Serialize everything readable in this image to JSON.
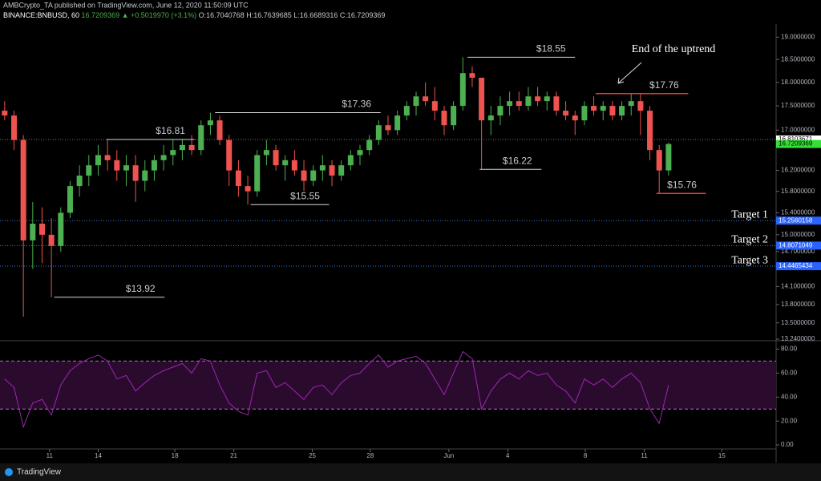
{
  "header": {
    "author": "AMBCrypto_TA published on TradingView.com, June 12, 2020 11:50:09 UTC",
    "symbol": "BINANCE:BNBUSD, 60",
    "last": "16.7209369",
    "change": "▲ +0.5019970 (+3.1%)",
    "open": "O:16.7040768",
    "high": "H:16.7639685",
    "low": "L:16.6689316",
    "close": "C:16.7209369",
    "brand": "TradingView"
  },
  "chart_data": [
    {
      "type": "candlestick",
      "log_scale": true,
      "up_color": "#4caf50",
      "down_color": "#ef5350",
      "ylim": [
        13.24,
        19.3
      ],
      "yticks": [
        {
          "value": 19,
          "label": "19.0000000"
        },
        {
          "value": 18.5,
          "label": "18.5000000"
        },
        {
          "value": 18,
          "label": "18.0000000"
        },
        {
          "value": 17.5,
          "label": "17.5000000"
        },
        {
          "value": 17,
          "label": "17.0000000"
        },
        {
          "value": 16.2,
          "label": "16.2000000"
        },
        {
          "value": 15.8,
          "label": "15.8000000"
        },
        {
          "value": 15.4,
          "label": "15.4000000"
        },
        {
          "value": 15,
          "label": "15.0000000"
        },
        {
          "value": 14.7,
          "label": "14.7000000"
        },
        {
          "value": 14.1,
          "label": "14.1000000"
        },
        {
          "value": 13.8,
          "label": "13.8000000"
        },
        {
          "value": 13.5,
          "label": "13.5000000"
        },
        {
          "value": 13.24,
          "label": "13.2400000"
        }
      ],
      "xlim": [
        0,
        83
      ],
      "xticks": [
        {
          "value": 5.3,
          "label": "11"
        },
        {
          "value": 10.5,
          "label": "14"
        },
        {
          "value": 18.7,
          "label": "18"
        },
        {
          "value": 25,
          "label": "21"
        },
        {
          "value": 33.4,
          "label": "25"
        },
        {
          "value": 39.6,
          "label": "28"
        },
        {
          "value": 48,
          "label": "Jun"
        },
        {
          "value": 54.3,
          "label": "4"
        },
        {
          "value": 62.6,
          "label": "8"
        },
        {
          "value": 68.9,
          "label": "11"
        },
        {
          "value": 77.2,
          "label": "15"
        }
      ],
      "open": [
        17.4,
        17.3,
        16.8,
        14.9,
        15.2,
        15.0,
        14.8,
        15.4,
        15.9,
        16.1,
        16.3,
        16.5,
        16.4,
        16.2,
        16.3,
        16.0,
        16.2,
        16.4,
        16.5,
        16.6,
        16.7,
        16.6,
        17.1,
        17.2,
        16.8,
        16.2,
        15.9,
        15.8,
        16.5,
        16.6,
        16.3,
        16.4,
        16.2,
        16.0,
        16.2,
        16.3,
        16.1,
        16.3,
        16.5,
        16.6,
        16.8,
        17.1,
        17.0,
        17.3,
        17.5,
        17.7,
        17.6,
        17.4,
        17.1,
        17.5,
        18.2,
        18.1,
        17.2,
        17.3,
        17.5,
        17.6,
        17.5,
        17.7,
        17.6,
        17.7,
        17.4,
        17.3,
        17.2,
        17.5,
        17.4,
        17.5,
        17.3,
        17.5,
        17.6,
        17.4,
        16.6,
        16.2
      ],
      "high": [
        17.6,
        17.4,
        16.9,
        15.6,
        15.5,
        15.3,
        15.5,
        16.0,
        16.3,
        16.5,
        16.7,
        16.81,
        16.6,
        16.5,
        16.5,
        16.4,
        16.5,
        16.7,
        16.8,
        16.81,
        16.9,
        17.2,
        17.36,
        17.3,
        16.9,
        16.4,
        16.1,
        16.6,
        16.8,
        16.7,
        16.5,
        16.6,
        16.4,
        16.3,
        16.5,
        16.4,
        16.4,
        16.6,
        16.7,
        16.9,
        17.2,
        17.3,
        17.4,
        17.6,
        17.8,
        18.0,
        17.9,
        17.5,
        17.6,
        18.55,
        18.35,
        18.1,
        17.5,
        17.7,
        17.8,
        17.8,
        17.9,
        17.9,
        17.8,
        17.8,
        17.6,
        17.4,
        17.6,
        17.7,
        17.6,
        17.6,
        17.6,
        17.76,
        17.76,
        17.5,
        16.7,
        16.75
      ],
      "low": [
        17.2,
        16.6,
        13.6,
        14.4,
        14.5,
        13.92,
        14.7,
        15.3,
        15.7,
        15.9,
        16.1,
        16.2,
        16.0,
        15.9,
        15.6,
        15.8,
        16.0,
        16.2,
        16.3,
        16.4,
        16.5,
        16.5,
        16.9,
        16.7,
        15.9,
        15.7,
        15.55,
        15.7,
        16.3,
        16.2,
        16.0,
        16.1,
        15.8,
        15.9,
        16.0,
        15.9,
        16.0,
        16.2,
        16.3,
        16.5,
        16.7,
        16.9,
        16.9,
        17.2,
        17.3,
        17.5,
        17.2,
        16.9,
        17.0,
        17.4,
        17.9,
        16.22,
        16.9,
        17.1,
        17.3,
        17.4,
        17.4,
        17.5,
        17.4,
        17.3,
        17.2,
        16.9,
        17.1,
        17.3,
        17.2,
        17.2,
        17.2,
        17.3,
        16.9,
        16.4,
        15.76,
        16.1
      ],
      "close": [
        17.3,
        16.8,
        14.9,
        15.2,
        15.0,
        14.8,
        15.4,
        15.9,
        16.1,
        16.3,
        16.5,
        16.4,
        16.2,
        16.3,
        16.0,
        16.2,
        16.4,
        16.5,
        16.6,
        16.7,
        16.6,
        17.1,
        17.2,
        16.8,
        16.2,
        15.9,
        15.8,
        16.5,
        16.6,
        16.3,
        16.4,
        16.2,
        16.0,
        16.2,
        16.3,
        16.1,
        16.3,
        16.5,
        16.6,
        16.8,
        17.1,
        17.0,
        17.3,
        17.5,
        17.7,
        17.6,
        17.4,
        17.1,
        17.5,
        18.2,
        18.1,
        17.2,
        17.3,
        17.5,
        17.6,
        17.5,
        17.7,
        17.6,
        17.7,
        17.4,
        17.3,
        17.2,
        17.5,
        17.4,
        17.5,
        17.3,
        17.5,
        17.6,
        17.4,
        16.6,
        16.2,
        16.72
      ],
      "annotations": [
        {
          "label": "$13.92",
          "value": 13.92,
          "x": [
            5.8,
            17.6
          ],
          "color": "#d8d8d8"
        },
        {
          "label": "$16.81",
          "value": 16.81,
          "x": [
            11.4,
            20.8
          ],
          "color": "#d8d8d8"
        },
        {
          "label": "$17.36",
          "value": 17.36,
          "x": [
            23,
            40.7
          ],
          "color": "#d8d8d8"
        },
        {
          "label": "$15.55",
          "value": 15.55,
          "x": [
            26.8,
            35.2
          ],
          "color": "#d8d8d8"
        },
        {
          "label": "$18.55",
          "value": 18.55,
          "x": [
            50,
            61.5
          ],
          "color": "#d8d8d8"
        },
        {
          "label": "$16.22",
          "value": 16.22,
          "x": [
            51.3,
            57.9
          ],
          "color": "#d8d8d8"
        },
        {
          "label": "$17.76",
          "value": 17.76,
          "x": [
            63.7,
            73.6
          ],
          "color": "#e53935"
        },
        {
          "label": "$15.76",
          "value": 15.76,
          "x": [
            70.2,
            75.5
          ],
          "color": "#e53935"
        }
      ],
      "targets": [
        {
          "label": "Target 1",
          "value": 15.2560158
        },
        {
          "label": "Target 2",
          "value": 14.8071049
        },
        {
          "label": "Target 3",
          "value": 14.4465434
        }
      ],
      "price_lines": [
        {
          "value": 16.8103671,
          "color": "#ffffff"
        },
        {
          "value": 16.7209369,
          "color": "#35e035"
        }
      ],
      "note": "End of the uptrend"
    },
    {
      "type": "line",
      "color": "#9c27b0",
      "ylim": [
        -10,
        85
      ],
      "band": [
        30,
        70
      ],
      "yticks": [
        {
          "value": 80,
          "label": "80.00"
        },
        {
          "value": 60,
          "label": "60.00"
        },
        {
          "value": 40,
          "label": "40.00"
        },
        {
          "value": 20,
          "label": "20.00"
        },
        {
          "value": 0,
          "label": "0.00"
        }
      ],
      "values": [
        55,
        48,
        15,
        35,
        38,
        25,
        50,
        62,
        68,
        72,
        75,
        70,
        55,
        58,
        45,
        52,
        58,
        62,
        65,
        68,
        60,
        72,
        70,
        50,
        35,
        28,
        25,
        60,
        62,
        48,
        52,
        45,
        38,
        48,
        50,
        42,
        52,
        58,
        60,
        68,
        75,
        65,
        70,
        72,
        74,
        68,
        55,
        42,
        60,
        78,
        72,
        30,
        45,
        55,
        60,
        55,
        62,
        58,
        60,
        50,
        45,
        35,
        55,
        50,
        55,
        48,
        55,
        60,
        52,
        30,
        18,
        50
      ]
    }
  ]
}
